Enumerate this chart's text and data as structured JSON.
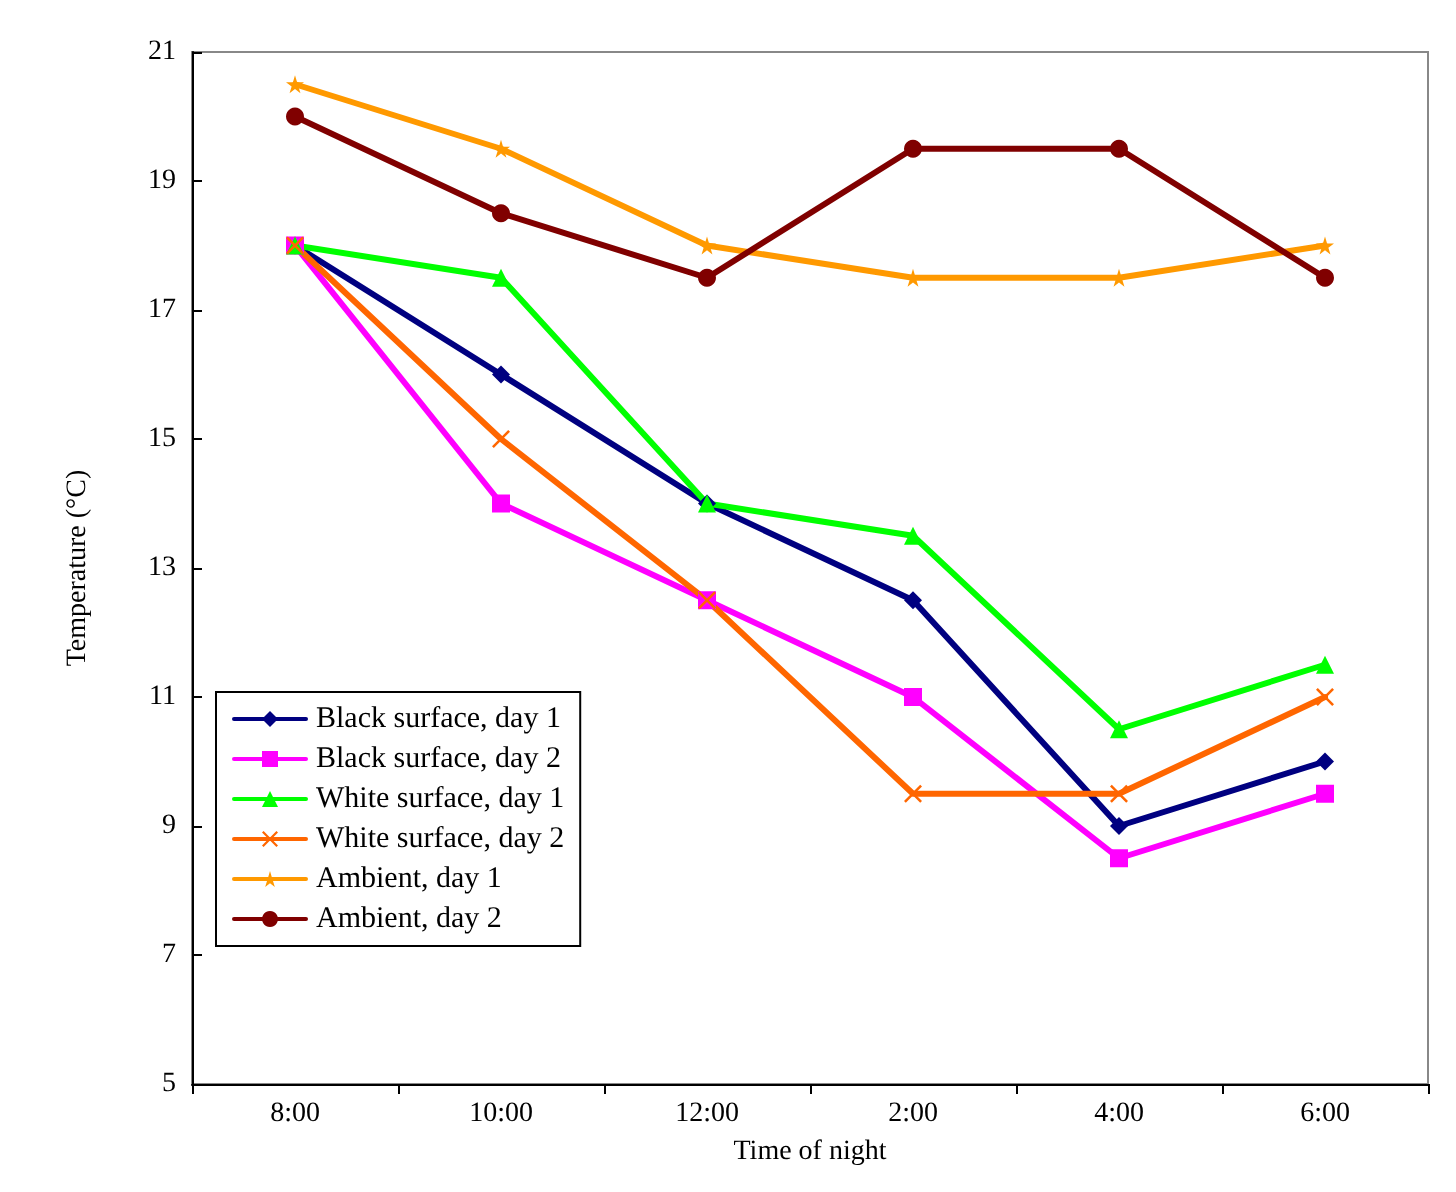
{
  "chart_data": {
    "type": "line",
    "xlabel": "Time of night",
    "ylabel": "Temperature (°C)",
    "categories": [
      "8:00",
      "10:00",
      "12:00",
      "2:00",
      "4:00",
      "6:00"
    ],
    "ylim": [
      5,
      21
    ],
    "yticks": [
      5,
      7,
      9,
      11,
      13,
      15,
      17,
      19,
      21
    ],
    "grid": false,
    "legend": "bottom left",
    "series": [
      {
        "name": "Black surface, day 1",
        "color": "#000080",
        "marker": "diamond",
        "values": [
          18,
          16,
          14,
          12.5,
          9,
          10
        ]
      },
      {
        "name": "Black surface, day 2",
        "color": "#ff00ff",
        "marker": "square",
        "values": [
          18,
          14,
          12.5,
          11,
          8.5,
          9.5
        ]
      },
      {
        "name": "White surface, day 1",
        "color": "#00ff00",
        "marker": "triangle",
        "values": [
          18,
          17.5,
          14,
          13.5,
          10.5,
          11.5
        ]
      },
      {
        "name": "White surface, day 2",
        "color": "#ff6600",
        "marker": "cross",
        "values": [
          18,
          15,
          12.5,
          9.5,
          9.5,
          11
        ]
      },
      {
        "name": "Ambient, day 1",
        "color": "#ff9900",
        "marker": "star",
        "values": [
          20.5,
          19.5,
          18,
          17.5,
          17.5,
          18
        ]
      },
      {
        "name": "Ambient, day 2",
        "color": "#800000",
        "marker": "circle",
        "values": [
          20,
          18.5,
          17.5,
          19.5,
          19.5,
          17.5
        ]
      }
    ]
  }
}
